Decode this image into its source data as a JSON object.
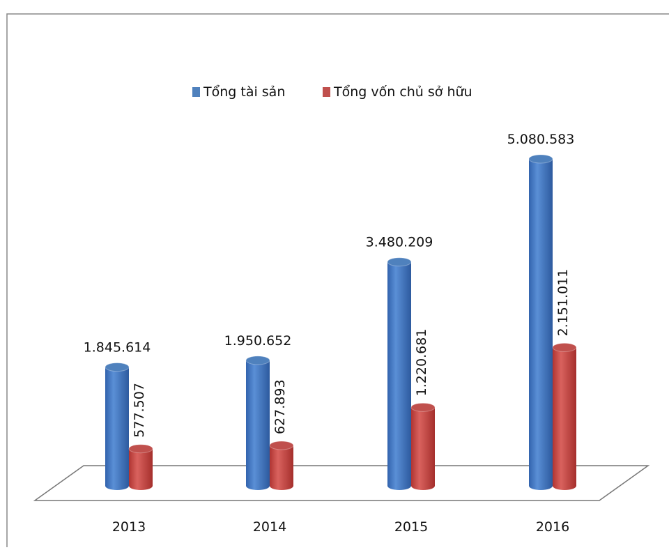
{
  "chart_data": {
    "type": "bar3d",
    "categories": [
      "2013",
      "2014",
      "2015",
      "2016"
    ],
    "series": [
      {
        "name": "Tổng tài sản",
        "color": "#4f81bd",
        "values": [
          1845614,
          1950652,
          3480209,
          5080583
        ],
        "value_labels": [
          "1.845.614",
          "1.950.652",
          "3.480.209",
          "5.080.583"
        ]
      },
      {
        "name": "Tổng vốn chủ sở hữu",
        "color": "#c0504d",
        "values": [
          577507,
          627893,
          1220681,
          2151011
        ],
        "value_labels": [
          "577.507",
          "627.893",
          "1.220.681",
          "2.151.011"
        ]
      }
    ],
    "legend": "top"
  }
}
